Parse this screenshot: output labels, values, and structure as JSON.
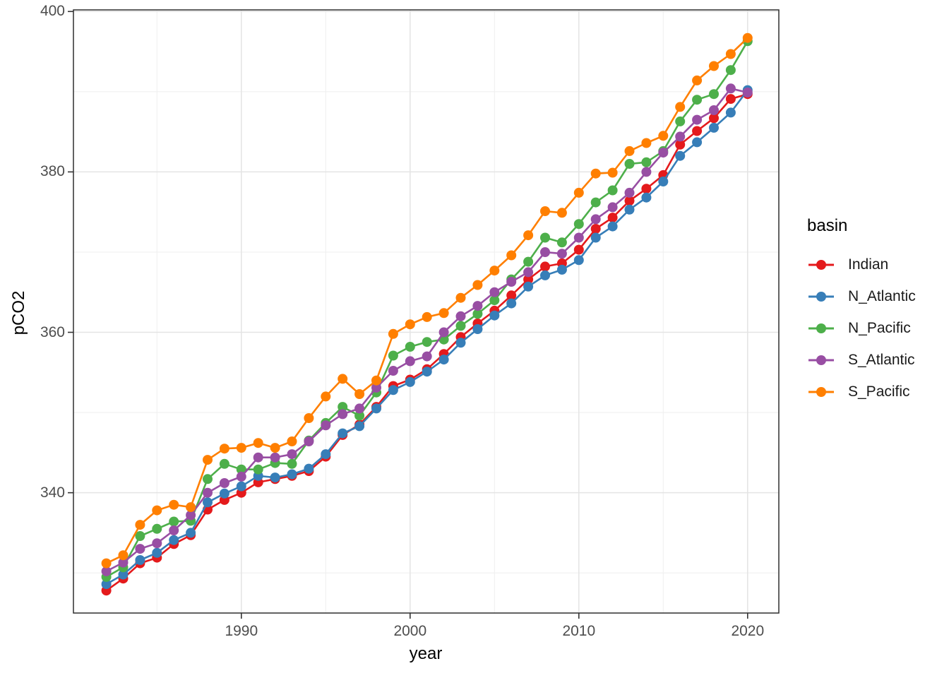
{
  "chart_data": {
    "type": "line",
    "title": "",
    "xlabel": "year",
    "ylabel": "pCO2",
    "legend_title": "basin",
    "legend_position": "right",
    "grid": true,
    "xlim": [
      1980.05,
      2021.85
    ],
    "ylim": [
      325.0,
      400.2
    ],
    "x_ticks": [
      1990,
      2000,
      2010,
      2020
    ],
    "x_minor_ticks": [
      1985,
      1995,
      2005,
      2015
    ],
    "y_ticks": [
      340,
      360,
      380,
      400
    ],
    "y_minor_ticks": [
      330,
      350,
      370,
      390
    ],
    "x": [
      1982,
      1983,
      1984,
      1985,
      1986,
      1987,
      1988,
      1989,
      1990,
      1991,
      1992,
      1993,
      1994,
      1995,
      1996,
      1997,
      1998,
      1999,
      2000,
      2001,
      2002,
      2003,
      2004,
      2005,
      2006,
      2007,
      2008,
      2009,
      2010,
      2011,
      2012,
      2013,
      2014,
      2015,
      2016,
      2017,
      2018,
      2019,
      2020
    ],
    "series": [
      {
        "name": "Indian",
        "color": "#E41A1C",
        "values": [
          327.8,
          329.3,
          331.2,
          331.9,
          333.6,
          334.7,
          337.9,
          339.1,
          340.0,
          341.3,
          341.7,
          342.1,
          342.7,
          344.5,
          347.2,
          348.5,
          350.7,
          353.3,
          354.1,
          355.4,
          357.3,
          359.4,
          361.1,
          362.7,
          364.6,
          366.6,
          368.2,
          368.6,
          370.3,
          372.9,
          374.3,
          376.4,
          377.9,
          379.6,
          383.4,
          385.1,
          386.7,
          389.1,
          389.7
        ]
      },
      {
        "name": "N_Atlantic",
        "color": "#377EB8",
        "values": [
          328.6,
          329.8,
          331.6,
          332.5,
          334.1,
          335.0,
          338.8,
          339.9,
          340.8,
          342.1,
          341.9,
          342.3,
          343.0,
          344.8,
          347.4,
          348.3,
          350.5,
          352.8,
          353.8,
          355.1,
          356.6,
          358.7,
          360.4,
          362.1,
          363.6,
          365.7,
          367.1,
          367.8,
          369.0,
          371.8,
          373.2,
          375.3,
          376.8,
          378.8,
          382.0,
          383.7,
          385.5,
          387.4,
          390.2
        ]
      },
      {
        "name": "N_Pacific",
        "color": "#4DAF4A",
        "values": [
          329.5,
          330.7,
          334.6,
          335.5,
          336.4,
          336.5,
          341.7,
          343.6,
          342.9,
          342.9,
          343.7,
          343.6,
          346.5,
          348.7,
          350.7,
          349.6,
          352.5,
          357.1,
          358.2,
          358.8,
          359.1,
          360.8,
          362.3,
          364.0,
          366.6,
          368.8,
          371.8,
          371.2,
          373.5,
          376.2,
          377.7,
          381.0,
          381.2,
          382.6,
          386.3,
          389.0,
          389.7,
          392.7,
          396.3
        ]
      },
      {
        "name": "S_Atlantic",
        "color": "#984EA3",
        "values": [
          330.2,
          331.3,
          333.0,
          333.7,
          335.3,
          337.2,
          340.0,
          341.2,
          342.0,
          344.4,
          344.4,
          344.8,
          346.4,
          348.4,
          349.8,
          350.5,
          353.1,
          355.2,
          356.4,
          357.0,
          360.0,
          362.0,
          363.3,
          365.0,
          366.3,
          367.5,
          370.0,
          369.8,
          371.8,
          374.1,
          375.6,
          377.4,
          380.0,
          382.4,
          384.4,
          386.5,
          387.7,
          390.4,
          389.9
        ]
      },
      {
        "name": "S_Pacific",
        "color": "#FF7F00",
        "values": [
          331.2,
          332.2,
          336.0,
          337.8,
          338.5,
          338.2,
          344.1,
          345.5,
          345.6,
          346.2,
          345.6,
          346.4,
          349.3,
          352.0,
          354.2,
          352.3,
          354.0,
          359.8,
          361.0,
          361.9,
          362.4,
          364.3,
          365.9,
          367.7,
          369.6,
          372.1,
          375.1,
          374.9,
          377.4,
          379.8,
          379.9,
          382.6,
          383.6,
          384.5,
          388.1,
          391.4,
          393.2,
          394.7,
          396.7
        ]
      }
    ]
  }
}
